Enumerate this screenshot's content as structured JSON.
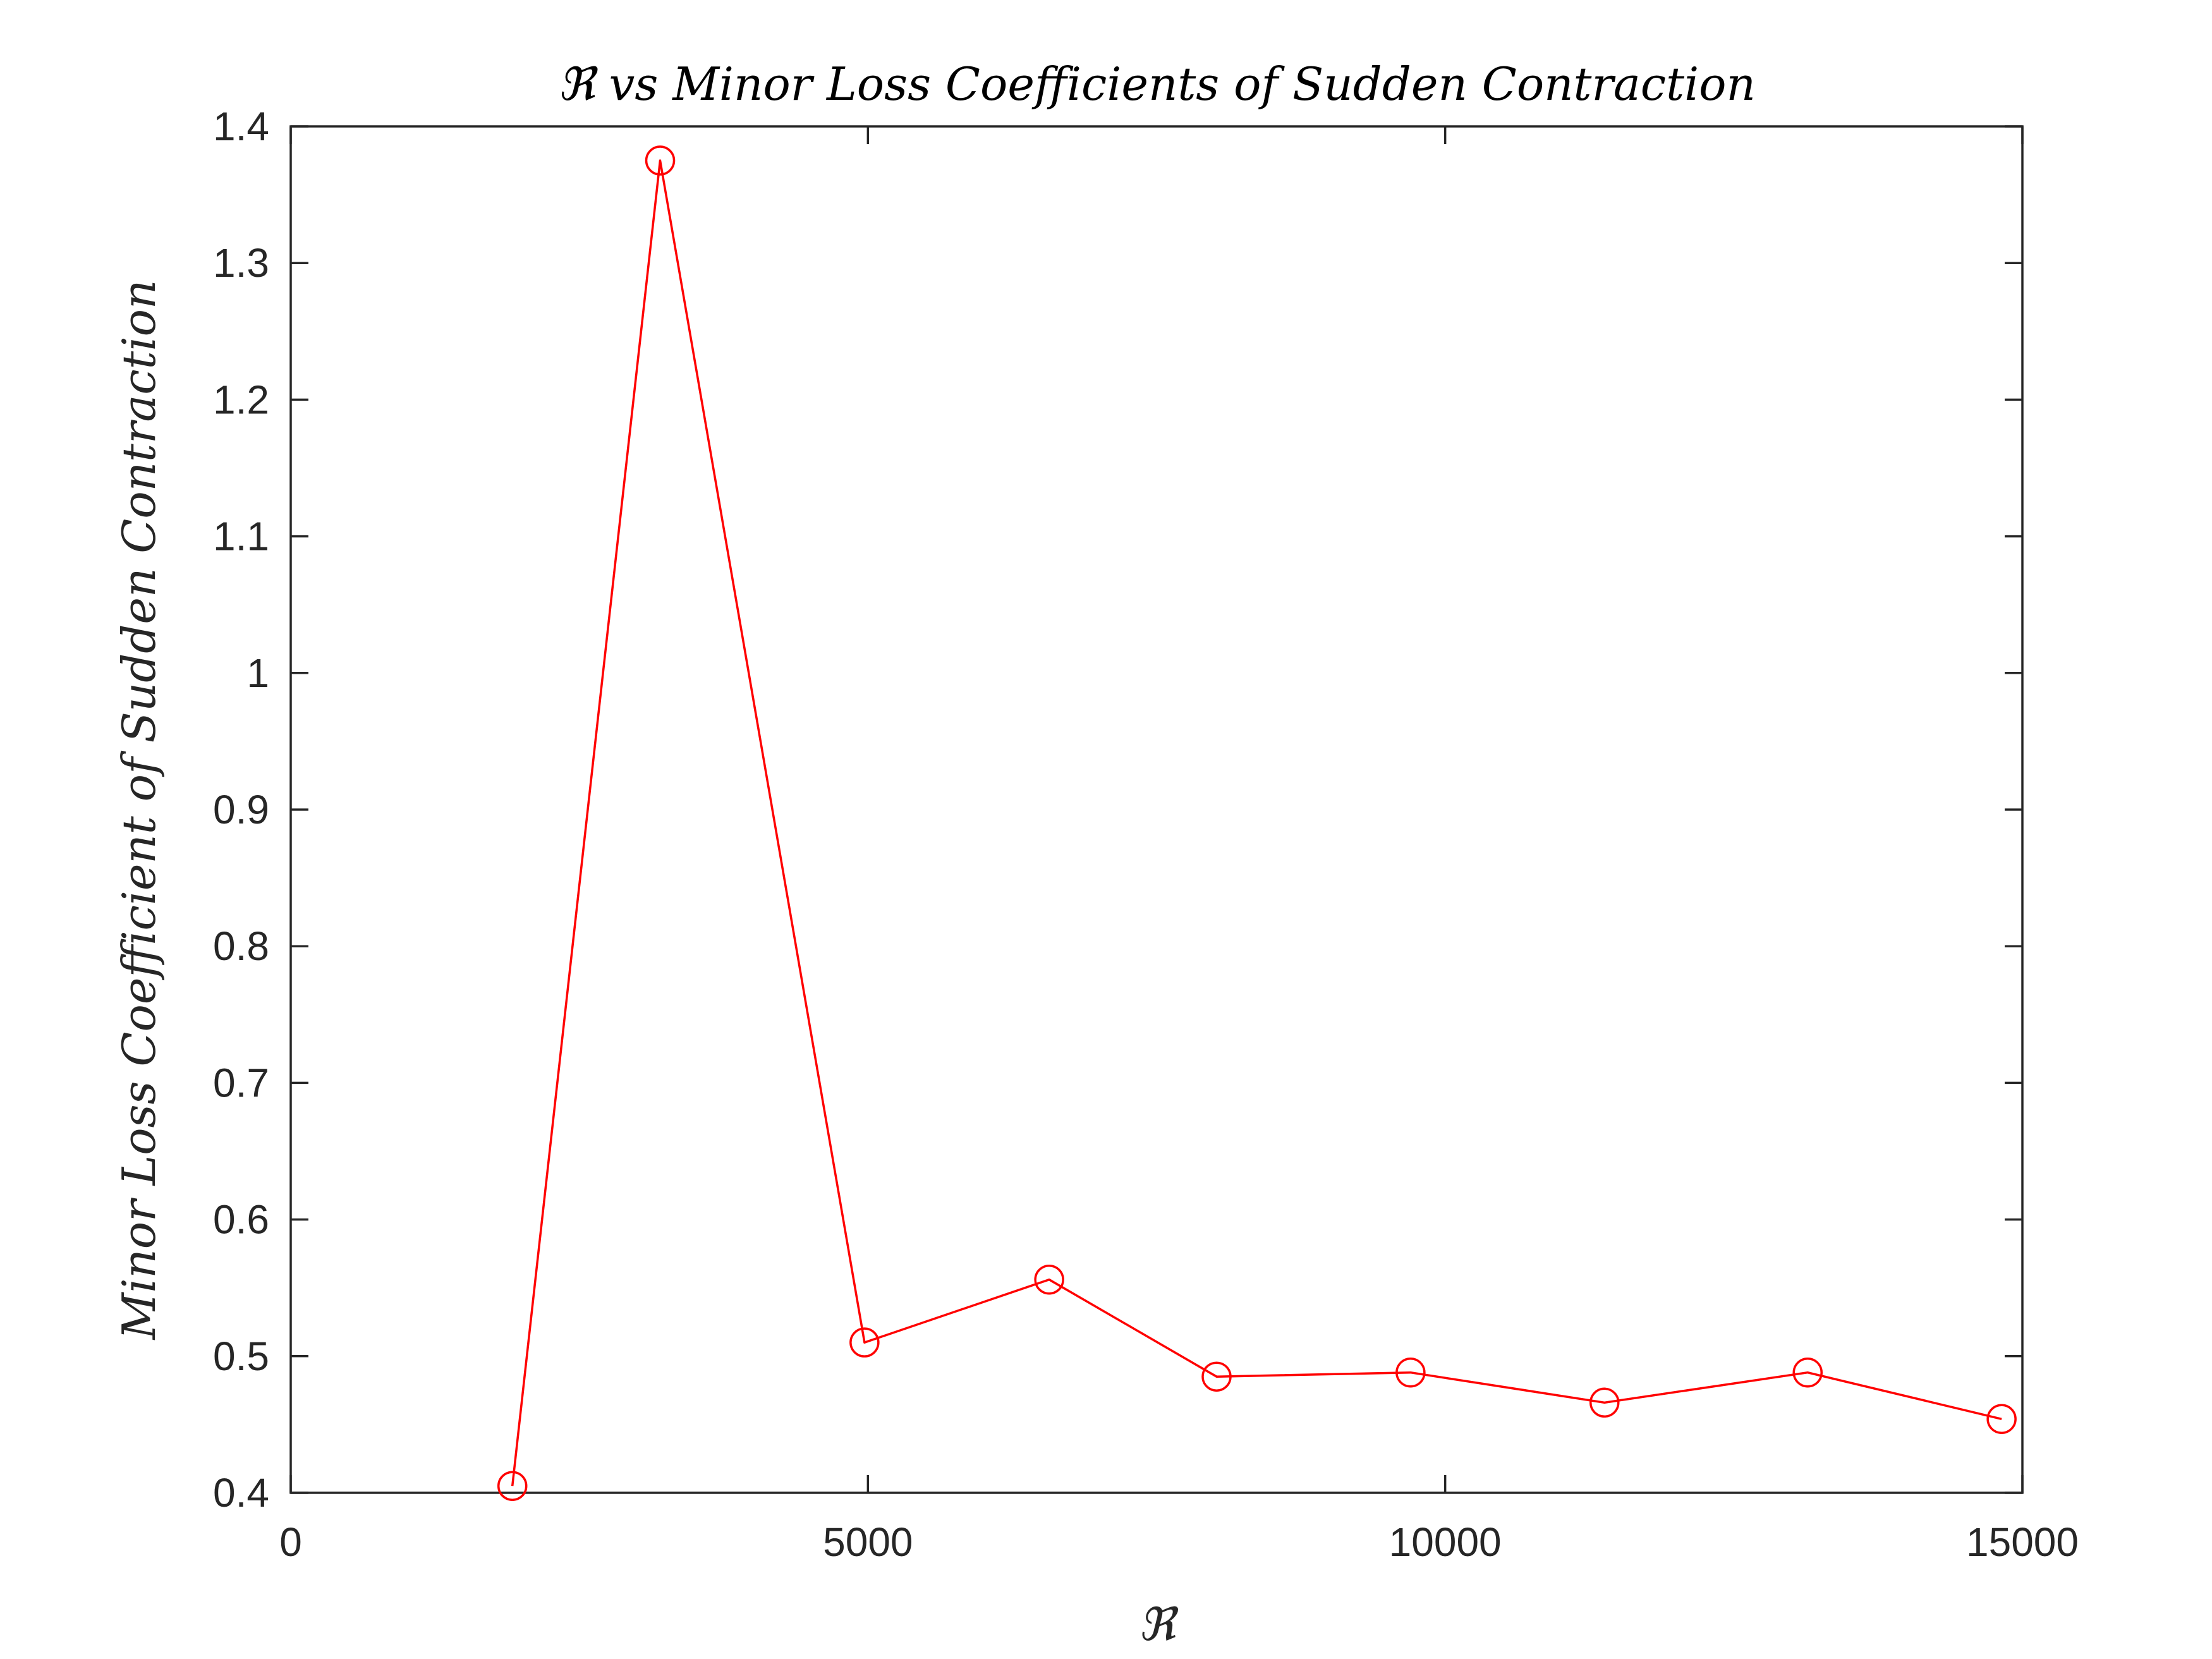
{
  "chart_data": {
    "type": "line",
    "title": "ℜ vs Minor Loss Coefficients of Sudden Contraction",
    "xlabel": "ℜ",
    "ylabel": "Minor Loss Coefficient of Sudden Contraction",
    "xlim": [
      0,
      15000
    ],
    "ylim": [
      0.4,
      1.4
    ],
    "xticks": [
      0,
      5000,
      10000,
      15000
    ],
    "xtick_labels": [
      "0",
      "5000",
      "10000",
      "15000"
    ],
    "yticks": [
      0.4,
      0.5,
      0.6,
      0.7,
      0.8,
      0.9,
      1.0,
      1.1,
      1.2,
      1.3,
      1.4
    ],
    "ytick_labels": [
      "0.4",
      "0.5",
      "0.6",
      "0.7",
      "0.8",
      "0.9",
      "1",
      "1.1",
      "1.2",
      "1.3",
      "1.4"
    ],
    "grid": false,
    "series": [
      {
        "color": "#ff0000",
        "marker": "circle",
        "x": [
          1920,
          3200,
          4970,
          6570,
          8020,
          9700,
          11380,
          13140,
          14820
        ],
        "y": [
          0.405,
          1.375,
          0.51,
          0.556,
          0.485,
          0.488,
          0.466,
          0.488,
          0.454
        ]
      }
    ]
  }
}
